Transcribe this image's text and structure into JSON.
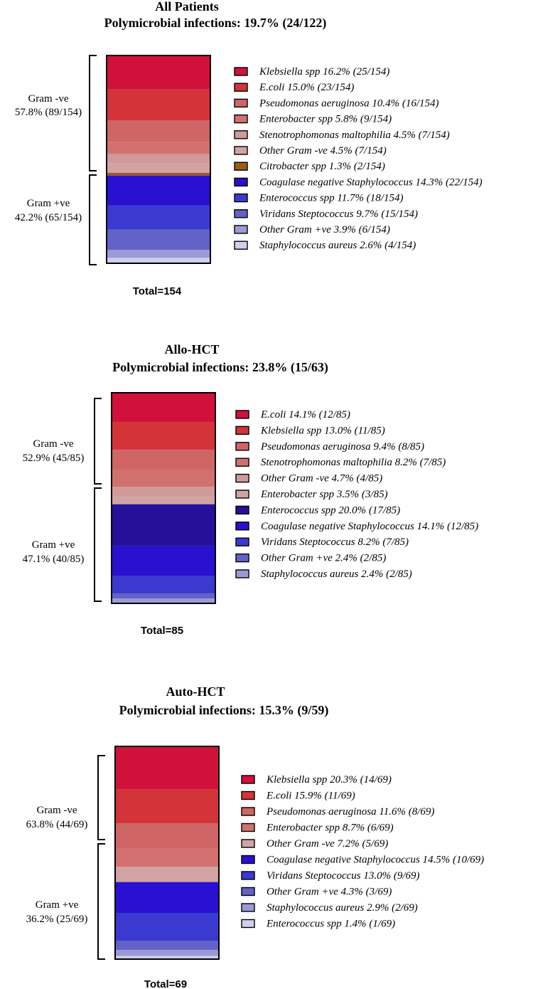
{
  "chart_data": [
    {
      "type": "stacked-bar",
      "title": "All Patients",
      "subtitle": "Polymicrobial infections: 19.7% (24/122)",
      "total_label": "Total=154",
      "total": 154,
      "groups": [
        {
          "name": "Gram -ve",
          "value_label": "57.8% (89/154)"
        },
        {
          "name": "Gram +ve",
          "value_label": "42.2% (65/154)"
        }
      ],
      "segments": [
        {
          "label": "Klebsiella spp 16.2% (25/154)",
          "value": 25,
          "color": "#d0123a",
          "group": 0
        },
        {
          "label": "E.coli 15.0% (23/154)",
          "value": 23,
          "color": "#d2343a",
          "group": 0
        },
        {
          "label": "Pseudomonas aeruginosa 10.4% (16/154)",
          "value": 16,
          "color": "#d06565",
          "group": 0
        },
        {
          "label": "Enterobacter spp 5.8% (9/154)",
          "value": 9,
          "color": "#d27070",
          "group": 0
        },
        {
          "label": "Stenotrophomonas maltophilia 4.5% (7/154)",
          "value": 7,
          "color": "#d19a9a",
          "group": 0
        },
        {
          "label": "Other Gram -ve 4.5% (7/154)",
          "value": 7,
          "color": "#d2a3a3",
          "group": 0
        },
        {
          "label": "Citrobacter spp 1.3% (2/154)",
          "value": 2,
          "color": "#9c5b1a",
          "group": 0
        },
        {
          "label": "Coagulase negative Staphylococcus 14.3% (22/154)",
          "value": 22,
          "color": "#2a10d0",
          "group": 1
        },
        {
          "label": "Enterococcus spp 11.7% (18/154)",
          "value": 18,
          "color": "#3a3ad0",
          "group": 1
        },
        {
          "label": "Viridans Steptococcus 9.7% (15/154)",
          "value": 15,
          "color": "#6262c8",
          "group": 1
        },
        {
          "label": "Other Gram +ve 3.9% (6/154)",
          "value": 6,
          "color": "#9a9ad6",
          "group": 1
        },
        {
          "label": "Staphylococcus aureus 2.6% (4/154)",
          "value": 4,
          "color": "#cfcff0",
          "group": 1
        }
      ]
    },
    {
      "type": "stacked-bar",
      "title": "Allo-HCT",
      "subtitle": "Polymicrobial infections:  23.8% (15/63)",
      "total_label": "Total=85",
      "total": 85,
      "groups": [
        {
          "name": "Gram -ve",
          "value_label": "52.9% (45/85)"
        },
        {
          "name": "Gram +ve",
          "value_label": "47.1% (40/85)"
        }
      ],
      "segments": [
        {
          "label": "E.coli 14.1% (12/85)",
          "value": 12,
          "color": "#d0123a",
          "group": 0
        },
        {
          "label": "Klebsiella spp 13.0% (11/85)",
          "value": 11,
          "color": "#d2343a",
          "group": 0
        },
        {
          "label": "Pseudomonas aeruginosa 9.4% (8/85)",
          "value": 8,
          "color": "#d06565",
          "group": 0
        },
        {
          "label": "Stenotrophomonas maltophilia 8.2% (7/85)",
          "value": 7,
          "color": "#d27070",
          "group": 0
        },
        {
          "label": "Other Gram -ve 4.7% (4/85)",
          "value": 4,
          "color": "#d19a9a",
          "group": 0
        },
        {
          "label": "Enterobacter spp 3.5% (3/85)",
          "value": 3,
          "color": "#d2a3a3",
          "group": 0
        },
        {
          "label": "Enterococcus spp 20.0% (17/85)",
          "value": 17,
          "color": "#26109a",
          "group": 1
        },
        {
          "label": "Coagulase negative Staphylococcus 14.1% (12/85)",
          "value": 12,
          "color": "#2a10d0",
          "group": 1
        },
        {
          "label": "Viridans Steptococcus 8.2% (7/85)",
          "value": 7,
          "color": "#3a3ad0",
          "group": 1
        },
        {
          "label": "Other Gram +ve 2.4% (2/85)",
          "value": 2,
          "color": "#6262c8",
          "group": 1
        },
        {
          "label": "Staphylococcus aureus 2.4% (2/85)",
          "value": 2,
          "color": "#9a9ad6",
          "group": 1
        }
      ]
    },
    {
      "type": "stacked-bar",
      "title": "Auto-HCT",
      "subtitle": "Polymicrobial infections: 15.3% (9/59)",
      "total_label": "Total=69",
      "total": 69,
      "groups": [
        {
          "name": "Gram -ve",
          "value_label": "63.8% (44/69)"
        },
        {
          "name": "Gram +ve",
          "value_label": "36.2% (25/69)"
        }
      ],
      "segments": [
        {
          "label": "Klebsiella spp 20.3% (14/69)",
          "value": 14,
          "color": "#d0123a",
          "group": 0
        },
        {
          "label": "E.coli 15.9% (11/69)",
          "value": 11,
          "color": "#d2343a",
          "group": 0
        },
        {
          "label": "Pseudomonas aeruginosa 11.6% (8/69)",
          "value": 8,
          "color": "#d06565",
          "group": 0
        },
        {
          "label": "Enterobacter spp 8.7% (6/69)",
          "value": 6,
          "color": "#d27070",
          "group": 0
        },
        {
          "label": "Other Gram -ve 7.2% (5/69)",
          "value": 5,
          "color": "#d2a3a3",
          "group": 0
        },
        {
          "label": "Coagulase negative Staphylococcus 14.5% (10/69)",
          "value": 10,
          "color": "#2a10d0",
          "group": 1
        },
        {
          "label": "Viridans Steptococcus 13.0% (9/69)",
          "value": 9,
          "color": "#3a3ad0",
          "group": 1
        },
        {
          "label": "Other Gram +ve 4.3% (3/69)",
          "value": 3,
          "color": "#6262c8",
          "group": 1
        },
        {
          "label": "Staphylococcus aureus 2.9% (2/69)",
          "value": 2,
          "color": "#9a9ad6",
          "group": 1
        },
        {
          "label": "Enterococcus spp 1.4% (1/69)",
          "value": 1,
          "color": "#cfcff0",
          "group": 1
        }
      ]
    }
  ]
}
